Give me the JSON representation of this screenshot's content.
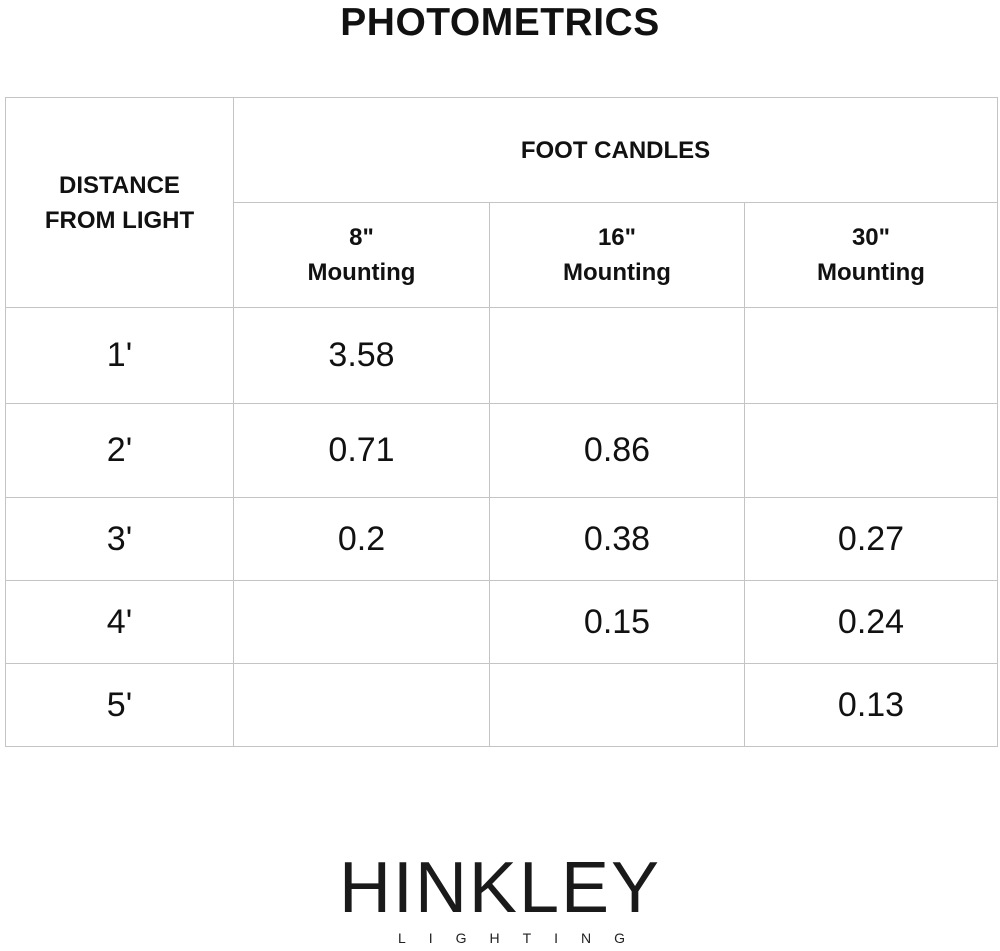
{
  "title": "PHOTOMETRICS",
  "table": {
    "row_header": "DISTANCE\nFROM LIGHT",
    "row_header_lines": [
      "DISTANCE",
      "FROM LIGHT"
    ],
    "group_header": "FOOT CANDLES",
    "columns": [
      {
        "size": "8\"",
        "label": "Mounting"
      },
      {
        "size": "16\"",
        "label": "Mounting"
      },
      {
        "size": "30\"",
        "label": "Mounting"
      }
    ],
    "rows": [
      {
        "distance": "1'",
        "values": [
          "3.58",
          "",
          ""
        ]
      },
      {
        "distance": "2'",
        "values": [
          "0.71",
          "0.86",
          ""
        ]
      },
      {
        "distance": "3'",
        "values": [
          "0.2",
          "0.38",
          "0.27"
        ]
      },
      {
        "distance": "4'",
        "values": [
          "",
          "0.15",
          "0.24"
        ]
      },
      {
        "distance": "5'",
        "values": [
          "",
          "",
          "0.13"
        ]
      }
    ]
  },
  "logo": {
    "brand": "HINKLEY",
    "sub": "LIGHTING"
  }
}
